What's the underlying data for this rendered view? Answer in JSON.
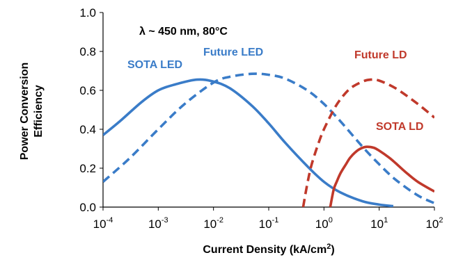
{
  "chart_data": {
    "type": "line",
    "title": "",
    "annotation": "λ ~ 450 nm, 80°C",
    "xlabel": "Current Density (kA/cm²)",
    "xlabel_main": "Current Density (kA/cm",
    "xlabel_sup": "2",
    "xlabel_end": ")",
    "ylabel_line1": "Power Conversion",
    "ylabel_line2": "Efficiency",
    "xscale": "log",
    "xlim": [
      0.0001,
      100
    ],
    "ylim": [
      0,
      1.0
    ],
    "x_ticks": [
      {
        "value": 0.0001,
        "base": "10",
        "exp": "-4"
      },
      {
        "value": 0.001,
        "base": "10",
        "exp": "-3"
      },
      {
        "value": 0.01,
        "base": "10",
        "exp": "-2"
      },
      {
        "value": 0.1,
        "base": "10",
        "exp": "-1"
      },
      {
        "value": 1,
        "base": "10",
        "exp": "0"
      },
      {
        "value": 10,
        "base": "10",
        "exp": "1"
      },
      {
        "value": 100,
        "base": "10",
        "exp": "2"
      }
    ],
    "y_ticks": [
      "0.0",
      "0.2",
      "0.4",
      "0.6",
      "0.8",
      "1.0"
    ],
    "grid": false,
    "series": [
      {
        "name": "SOTA LED",
        "color": "#3a7cc8",
        "style": "solid",
        "x": [
          0.0001,
          0.0002,
          0.0005,
          0.001,
          0.002,
          0.005,
          0.01,
          0.02,
          0.05,
          0.1,
          0.2,
          0.5,
          1,
          2,
          5,
          10,
          18
        ],
        "y": [
          0.37,
          0.44,
          0.54,
          0.6,
          0.63,
          0.655,
          0.645,
          0.61,
          0.52,
          0.43,
          0.33,
          0.21,
          0.13,
          0.075,
          0.03,
          0.013,
          0.005
        ]
      },
      {
        "name": "Future LED",
        "color": "#3a7cc8",
        "style": "dashed",
        "x": [
          0.0001,
          0.0003,
          0.001,
          0.003,
          0.01,
          0.02,
          0.05,
          0.1,
          0.2,
          0.5,
          1,
          2,
          5,
          10,
          20,
          50,
          100
        ],
        "y": [
          0.13,
          0.25,
          0.4,
          0.53,
          0.64,
          0.67,
          0.685,
          0.68,
          0.66,
          0.6,
          0.53,
          0.44,
          0.31,
          0.22,
          0.14,
          0.06,
          0.02
        ]
      },
      {
        "name": "Future LD",
        "color": "#c0392b",
        "style": "dashed",
        "x": [
          0.42,
          0.5,
          0.6,
          0.8,
          1,
          1.5,
          2,
          3,
          5,
          7,
          10,
          20,
          50,
          100
        ],
        "y": [
          0.0,
          0.12,
          0.22,
          0.33,
          0.4,
          0.5,
          0.555,
          0.61,
          0.645,
          0.655,
          0.65,
          0.61,
          0.53,
          0.46
        ]
      },
      {
        "name": "SOTA LD",
        "color": "#c0392b",
        "style": "solid",
        "x": [
          1.3,
          1.5,
          1.7,
          2,
          2.5,
          3,
          4,
          5,
          6,
          8,
          10,
          15,
          20,
          30,
          50,
          100
        ],
        "y": [
          0.0,
          0.09,
          0.13,
          0.175,
          0.22,
          0.255,
          0.29,
          0.305,
          0.31,
          0.305,
          0.29,
          0.255,
          0.225,
          0.18,
          0.13,
          0.08
        ]
      }
    ],
    "labels": [
      {
        "text": "SOTA LED",
        "color": "#3a7cc8"
      },
      {
        "text": "Future LED",
        "color": "#3a7cc8"
      },
      {
        "text": "Future LD",
        "color": "#c0392b"
      },
      {
        "text": "SOTA LD",
        "color": "#c0392b"
      }
    ]
  }
}
